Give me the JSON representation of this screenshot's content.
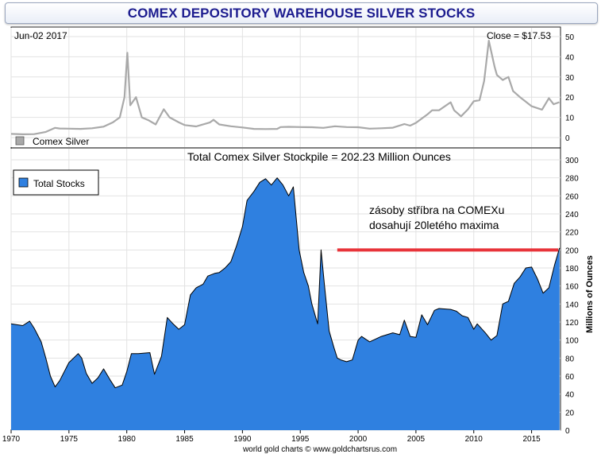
{
  "title": "COMEX DEPOSITORY WAREHOUSE SILVER STOCKS",
  "top_panel": {
    "date_label": "Jun-02  2017",
    "close_label": "Close = $17.53",
    "legend_label": "Comex Silver",
    "colors": {
      "line": "#a9a9a9",
      "legend_box": "#a9a9a9"
    }
  },
  "bottom_panel": {
    "heading": "Total Comex Silver Stockpile = 202.23 Million Ounces",
    "legend_label": "Total Stocks",
    "y_axis_title": "Millions of Ounces",
    "annotation_line1": "zásoby stříbra na COMEXu",
    "annotation_line2": "dosahují 20letého maxima",
    "colors": {
      "area_fill": "#2f80e0",
      "area_line": "#000000",
      "marker": "#e8343a"
    }
  },
  "footer": "world gold charts © www.goldchartsrus.com",
  "chart_data": [
    {
      "type": "line",
      "series": [
        {
          "name": "Comex Silver",
          "x": [
            1970,
            1971,
            1972,
            1973,
            1973.8,
            1974.2,
            1975,
            1976,
            1977,
            1978,
            1978.8,
            1979.4,
            1979.8,
            1980.05,
            1980.3,
            1980.8,
            1981.3,
            1981.9,
            1982.5,
            1983.2,
            1983.7,
            1984.5,
            1985,
            1986,
            1987.2,
            1987.5,
            1988,
            1989,
            1990,
            1991,
            1992,
            1993,
            1993.3,
            1994,
            1995,
            1996,
            1997,
            1998,
            1999,
            2000,
            2001,
            2002,
            2003,
            2004,
            2004.5,
            2005,
            2006,
            2006.4,
            2007,
            2008,
            2008.3,
            2008.9,
            2009.5,
            2010,
            2010.5,
            2010.9,
            2011.3,
            2011.8,
            2012,
            2012.5,
            2013,
            2013.4,
            2014,
            2015,
            2015.9,
            2016.5,
            2016.9,
            2017.4
          ],
          "values": [
            1.8,
            1.6,
            1.7,
            2.8,
            4.8,
            4.5,
            4.4,
            4.3,
            4.6,
            5.4,
            7.5,
            10,
            20,
            42,
            16,
            20,
            10,
            8.5,
            6.5,
            14,
            10,
            7.5,
            6.2,
            5.5,
            7.5,
            8.8,
            6.5,
            5.6,
            5,
            4.3,
            4.2,
            4.3,
            5.2,
            5.3,
            5.2,
            5.1,
            4.8,
            5.6,
            5.2,
            5.1,
            4.4,
            4.6,
            4.9,
            6.7,
            5.9,
            7.3,
            11.5,
            13.5,
            13.5,
            17.5,
            13.5,
            10.5,
            14,
            18,
            18.5,
            28,
            48,
            35,
            31,
            28.5,
            30,
            23,
            20,
            15.5,
            13.8,
            19.5,
            16.5,
            17.53
          ]
        }
      ],
      "xlim": [
        1970,
        2017.5
      ],
      "ylim": [
        0,
        52
      ],
      "y_ticks": [
        0,
        10,
        20,
        30,
        40,
        50
      ],
      "grid": true
    },
    {
      "type": "area",
      "series": [
        {
          "name": "Total Stocks",
          "x": [
            1970,
            1971,
            1971.6,
            1972,
            1972.6,
            1973,
            1973.4,
            1973.8,
            1974.2,
            1975,
            1975.8,
            1976.1,
            1976.5,
            1977,
            1977.5,
            1978,
            1978.6,
            1979,
            1979.6,
            1980,
            1980.4,
            1981,
            1982,
            1982.4,
            1983,
            1983.5,
            1984,
            1984.5,
            1985,
            1985.5,
            1986,
            1986.6,
            1987,
            1987.6,
            1988,
            1988.5,
            1989,
            1989.5,
            1990,
            1990.4,
            1991,
            1991.5,
            1992,
            1992.5,
            1993,
            1993.5,
            1994,
            1994.4,
            1994.9,
            1995.3,
            1995.7,
            1996,
            1996.5,
            1996.8,
            1997.1,
            1997.5,
            1997.9,
            1998.2,
            1998.5,
            1999,
            1999.5,
            2000,
            2000.3,
            2001,
            2002,
            2003,
            2003.6,
            2004,
            2004.5,
            2005,
            2005.5,
            2006,
            2006.6,
            2007,
            2008,
            2008.5,
            2009,
            2009.5,
            2010,
            2010.3,
            2011,
            2011.5,
            2012,
            2012.5,
            2013,
            2013.5,
            2014,
            2014.5,
            2015,
            2015.5,
            2016,
            2016.5,
            2017,
            2017.42
          ],
          "values": [
            118,
            116,
            121,
            113,
            98,
            80,
            60,
            48,
            55,
            75,
            85,
            80,
            63,
            52,
            58,
            68,
            55,
            47,
            50,
            65,
            85,
            85,
            86,
            62,
            82,
            125,
            118,
            112,
            117,
            150,
            158,
            162,
            171,
            174,
            175,
            180,
            187,
            205,
            226,
            255,
            265,
            275,
            279,
            272,
            280,
            272,
            260,
            270,
            200,
            175,
            160,
            140,
            118,
            200,
            160,
            110,
            92,
            80,
            78,
            76,
            78,
            100,
            104,
            98,
            104,
            108,
            106,
            122,
            104,
            103,
            128,
            117,
            133,
            135,
            134,
            132,
            127,
            125,
            112,
            118,
            108,
            100,
            105,
            140,
            143,
            163,
            170,
            180,
            181,
            168,
            152,
            158,
            184,
            202.23
          ]
        }
      ],
      "xlim": [
        1970,
        2017.5
      ],
      "ylim": [
        0,
        300
      ],
      "y_ticks": [
        0,
        20,
        40,
        60,
        80,
        100,
        120,
        140,
        160,
        180,
        200,
        220,
        240,
        260,
        280,
        300
      ],
      "x_ticks": [
        1970,
        1975,
        1980,
        1985,
        1990,
        1995,
        2000,
        2005,
        2010,
        2015
      ],
      "ylabel": "Millions of Ounces",
      "marker_line": {
        "x_start": 1998.2,
        "x_end": 2017.3,
        "value": 200
      },
      "grid": true
    }
  ]
}
